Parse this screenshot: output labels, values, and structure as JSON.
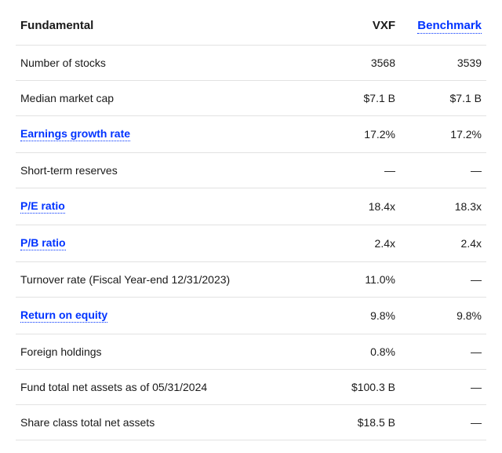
{
  "header": {
    "fundamental": "Fundamental",
    "col1": "VXF",
    "col2": "Benchmark"
  },
  "rows": [
    {
      "label": "Number of stocks",
      "link": false,
      "vxf": "3568",
      "bench": "3539"
    },
    {
      "label": "Median market cap",
      "link": false,
      "vxf": "$7.1 B",
      "bench": "$7.1 B"
    },
    {
      "label": "Earnings growth rate",
      "link": true,
      "vxf": "17.2%",
      "bench": "17.2%"
    },
    {
      "label": "Short-term reserves",
      "link": false,
      "vxf": "—",
      "bench": "—"
    },
    {
      "label": "P/E ratio",
      "link": true,
      "vxf": "18.4x",
      "bench": "18.3x"
    },
    {
      "label": "P/B ratio",
      "link": true,
      "vxf": "2.4x",
      "bench": "2.4x"
    },
    {
      "label": "Turnover rate (Fiscal Year-end 12/31/2023)",
      "link": false,
      "vxf": "11.0%",
      "bench": "—"
    },
    {
      "label": "Return on equity",
      "link": true,
      "vxf": "9.8%",
      "bench": "9.8%"
    },
    {
      "label": "Foreign holdings",
      "link": false,
      "vxf": "0.8%",
      "bench": "—"
    },
    {
      "label": "Fund total net assets as of 05/31/2024",
      "link": false,
      "vxf": "$100.3 B",
      "bench": "—"
    },
    {
      "label": "Share class total net assets",
      "link": false,
      "vxf": "$18.5 B",
      "bench": "—"
    }
  ],
  "colors": {
    "link": "#0033ff",
    "border": "#e2e2e2",
    "text": "#1a1a1a",
    "background": "#ffffff"
  }
}
